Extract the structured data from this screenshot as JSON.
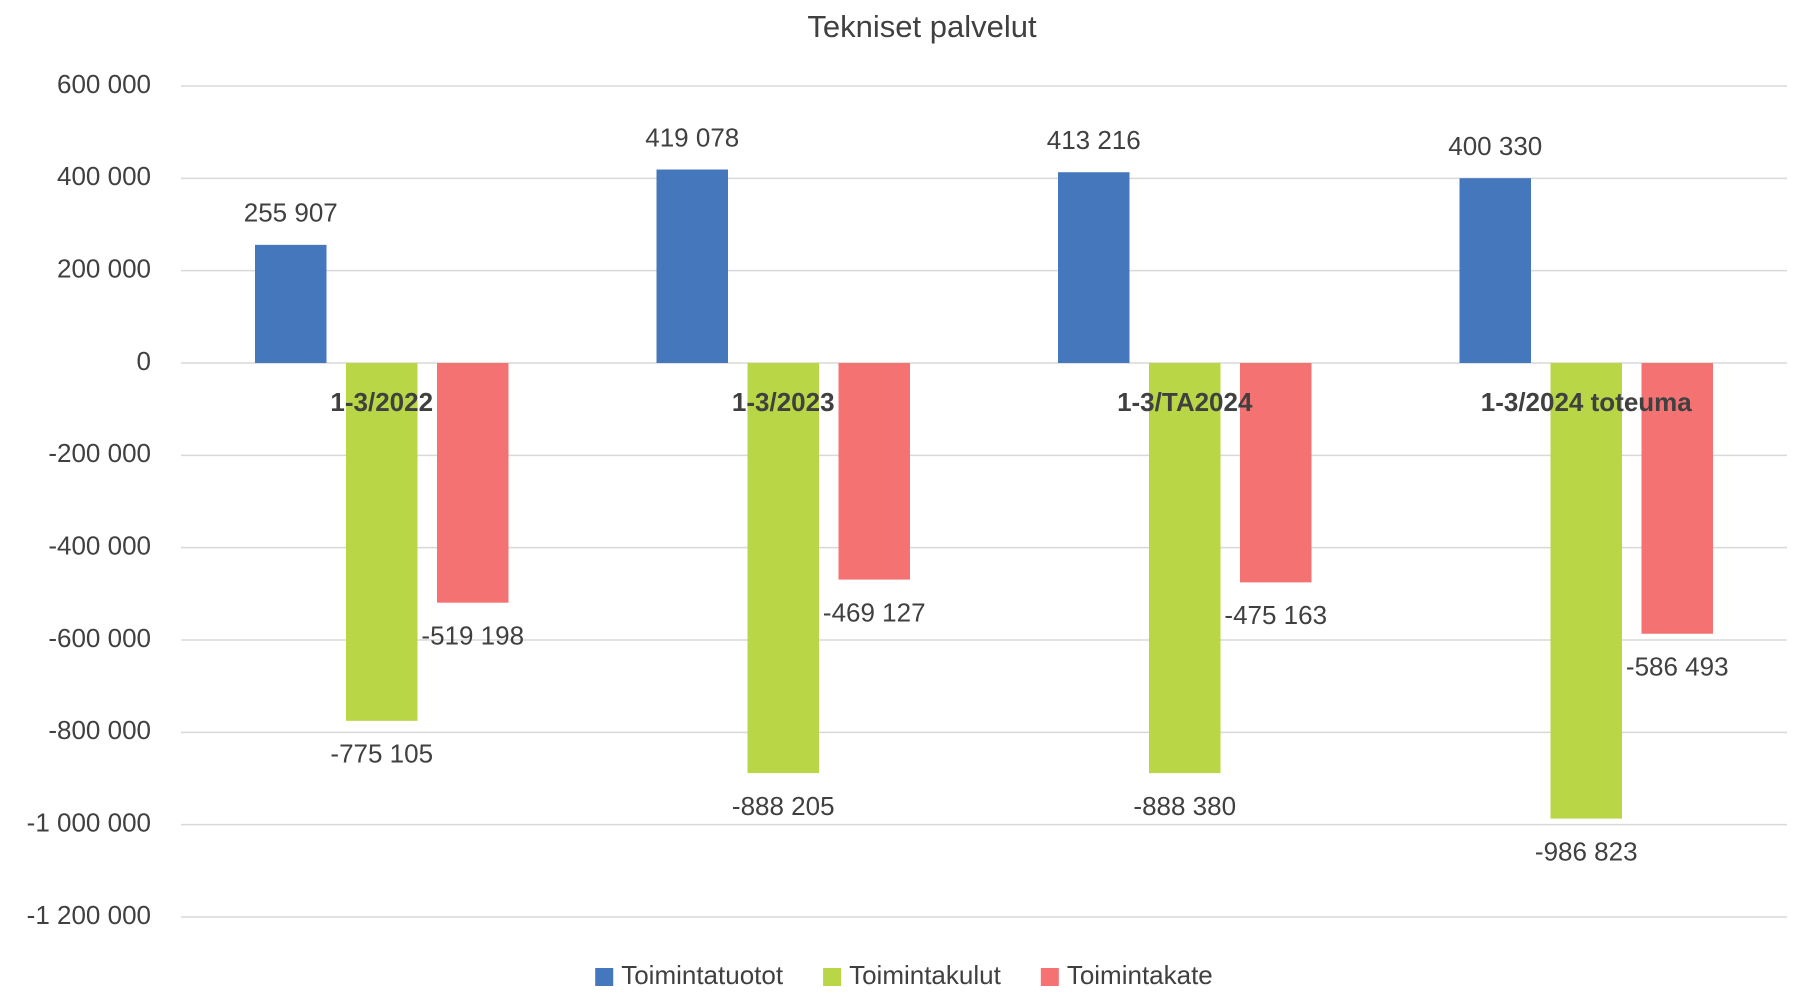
{
  "chart_data": {
    "type": "bar",
    "title": "Tekniset palvelut",
    "categories": [
      "1-3/2022",
      "1-3/2023",
      "1-3/TA2024",
      "1-3/2024 toteuma"
    ],
    "series": [
      {
        "name": "Toimintatuotot",
        "color": "#4577bd",
        "values": [
          255907,
          419078,
          413216,
          400330
        ],
        "value_labels": [
          "255 907",
          "419 078",
          "413 216",
          "400 330"
        ]
      },
      {
        "name": "Toimintakulut",
        "color": "#b8d646",
        "values": [
          -775105,
          -888205,
          -888380,
          -986823
        ],
        "value_labels": [
          "-775 105",
          "-888 205",
          "-888 380",
          "-986 823"
        ]
      },
      {
        "name": "Toimintakate",
        "color": "#f47272",
        "values": [
          -519198,
          -469127,
          -475163,
          -586493
        ],
        "value_labels": [
          "-519 198",
          "-469 127",
          "-475 163",
          "-586 493"
        ]
      }
    ],
    "ylim": [
      -1200000,
      600000
    ],
    "yticks": [
      {
        "value": -1200000,
        "label": "-1 200 000"
      },
      {
        "value": -1000000,
        "label": "-1 000 000"
      },
      {
        "value": -800000,
        "label": "-800 000"
      },
      {
        "value": -600000,
        "label": "-600 000"
      },
      {
        "value": -400000,
        "label": "-400 000"
      },
      {
        "value": -200000,
        "label": "-200 000"
      },
      0,
      {
        "value": 200000,
        "label": "200 000"
      },
      {
        "value": 400000,
        "label": "400 000"
      },
      {
        "value": 600000,
        "label": "600 000"
      }
    ],
    "grid": true,
    "legend": "bottom"
  }
}
